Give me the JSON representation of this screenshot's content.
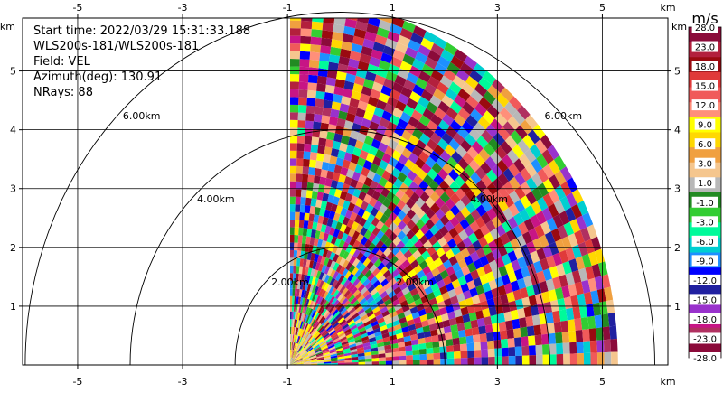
{
  "chart_data": {
    "type": "heatmap",
    "plot": "PPI radar sector scan",
    "info": {
      "start_time": "Start time: 2022/03/29 15:31:33.188",
      "instrument": "WLS200s-181/WLS200s-181",
      "field": "Field: VEL",
      "azimuth": "Azimuth(deg): 130.91",
      "nrays": "NRays: 88"
    },
    "x_unit": "km",
    "y_unit": "km",
    "xlim": [
      -6.05,
      6.25
    ],
    "ylim": [
      0,
      5.9
    ],
    "x_ticks": [
      -5,
      -3,
      -1,
      1,
      3,
      5
    ],
    "y_ticks": [
      1,
      2,
      3,
      4,
      5
    ],
    "grid": true,
    "range_rings": [
      {
        "r": 2,
        "label": "2.00km"
      },
      {
        "r": 4,
        "label": "4.00km"
      },
      {
        "r": 6,
        "label": "6.00km"
      }
    ],
    "sector": {
      "az_start_deg": 0,
      "az_end_deg": 90,
      "x_start_km": -0.95,
      "max_range_km": 6.25
    },
    "colorbar": {
      "unit": "m/s",
      "labels": [
        "28.0",
        "23.0",
        "18.0",
        "15.0",
        "12.0",
        "9.0",
        "6.0",
        "3.0",
        "1.0",
        "-1.0",
        "-3.0",
        "-6.0",
        "-9.0",
        "-12.0",
        "-15.0",
        "-18.0",
        "-23.0",
        "-28.0"
      ],
      "colors": [
        "#8b0b3a",
        "#b3203d",
        "#9a0a10",
        "#e03a3a",
        "#f05a5a",
        "#ff8f7a",
        "#ffff00",
        "#ffd800",
        "#f0a040",
        "#f5c68e",
        "#b8b8b8",
        "#228b22",
        "#32cd32",
        "#00fa9a",
        "#00ced1",
        "#1e90ff",
        "#0000ff",
        "#2020a0",
        "#9932cc",
        "#c71585",
        "#b03060",
        "#8b0b3a"
      ]
    }
  }
}
